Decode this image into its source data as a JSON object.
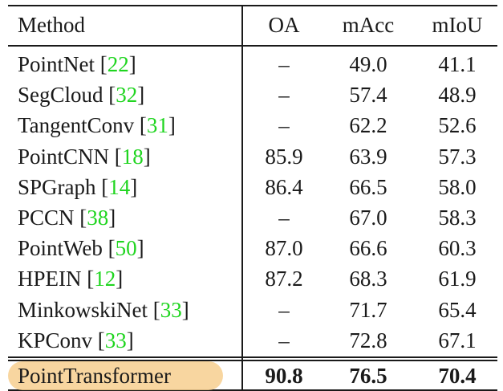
{
  "header": {
    "method": "Method",
    "oa": "OA",
    "macc": "mAcc",
    "miou": "mIoU"
  },
  "rows": [
    {
      "method": "PointNet",
      "ref": "22",
      "oa": "–",
      "macc": "49.0",
      "miou": "41.1"
    },
    {
      "method": "SegCloud",
      "ref": "32",
      "oa": "–",
      "macc": "57.4",
      "miou": "48.9"
    },
    {
      "method": "TangentConv",
      "ref": "31",
      "oa": "–",
      "macc": "62.2",
      "miou": "52.6"
    },
    {
      "method": "PointCNN",
      "ref": "18",
      "oa": "85.9",
      "macc": "63.9",
      "miou": "57.3"
    },
    {
      "method": "SPGraph",
      "ref": "14",
      "oa": "86.4",
      "macc": "66.5",
      "miou": "58.0"
    },
    {
      "method": "PCCN",
      "ref": "38",
      "oa": "–",
      "macc": "67.0",
      "miou": "58.3"
    },
    {
      "method": "PointWeb",
      "ref": "50",
      "oa": "87.0",
      "macc": "66.6",
      "miou": "60.3"
    },
    {
      "method": "HPEIN",
      "ref": "12",
      "oa": "87.2",
      "macc": "68.3",
      "miou": "61.9"
    },
    {
      "method": "MinkowskiNet",
      "ref": "33",
      "oa": "–",
      "macc": "71.7",
      "miou": "65.4"
    },
    {
      "method": "KPConv",
      "ref": "33",
      "oa": "–",
      "macc": "72.8",
      "miou": "67.1"
    }
  ],
  "final": {
    "method": "PointTransformer",
    "oa": "90.8",
    "macc": "76.5",
    "miou": "70.4"
  },
  "colors": {
    "ref": "#1fd51f",
    "highlight": "#f7cf8f",
    "text": "#1a1a1a"
  }
}
